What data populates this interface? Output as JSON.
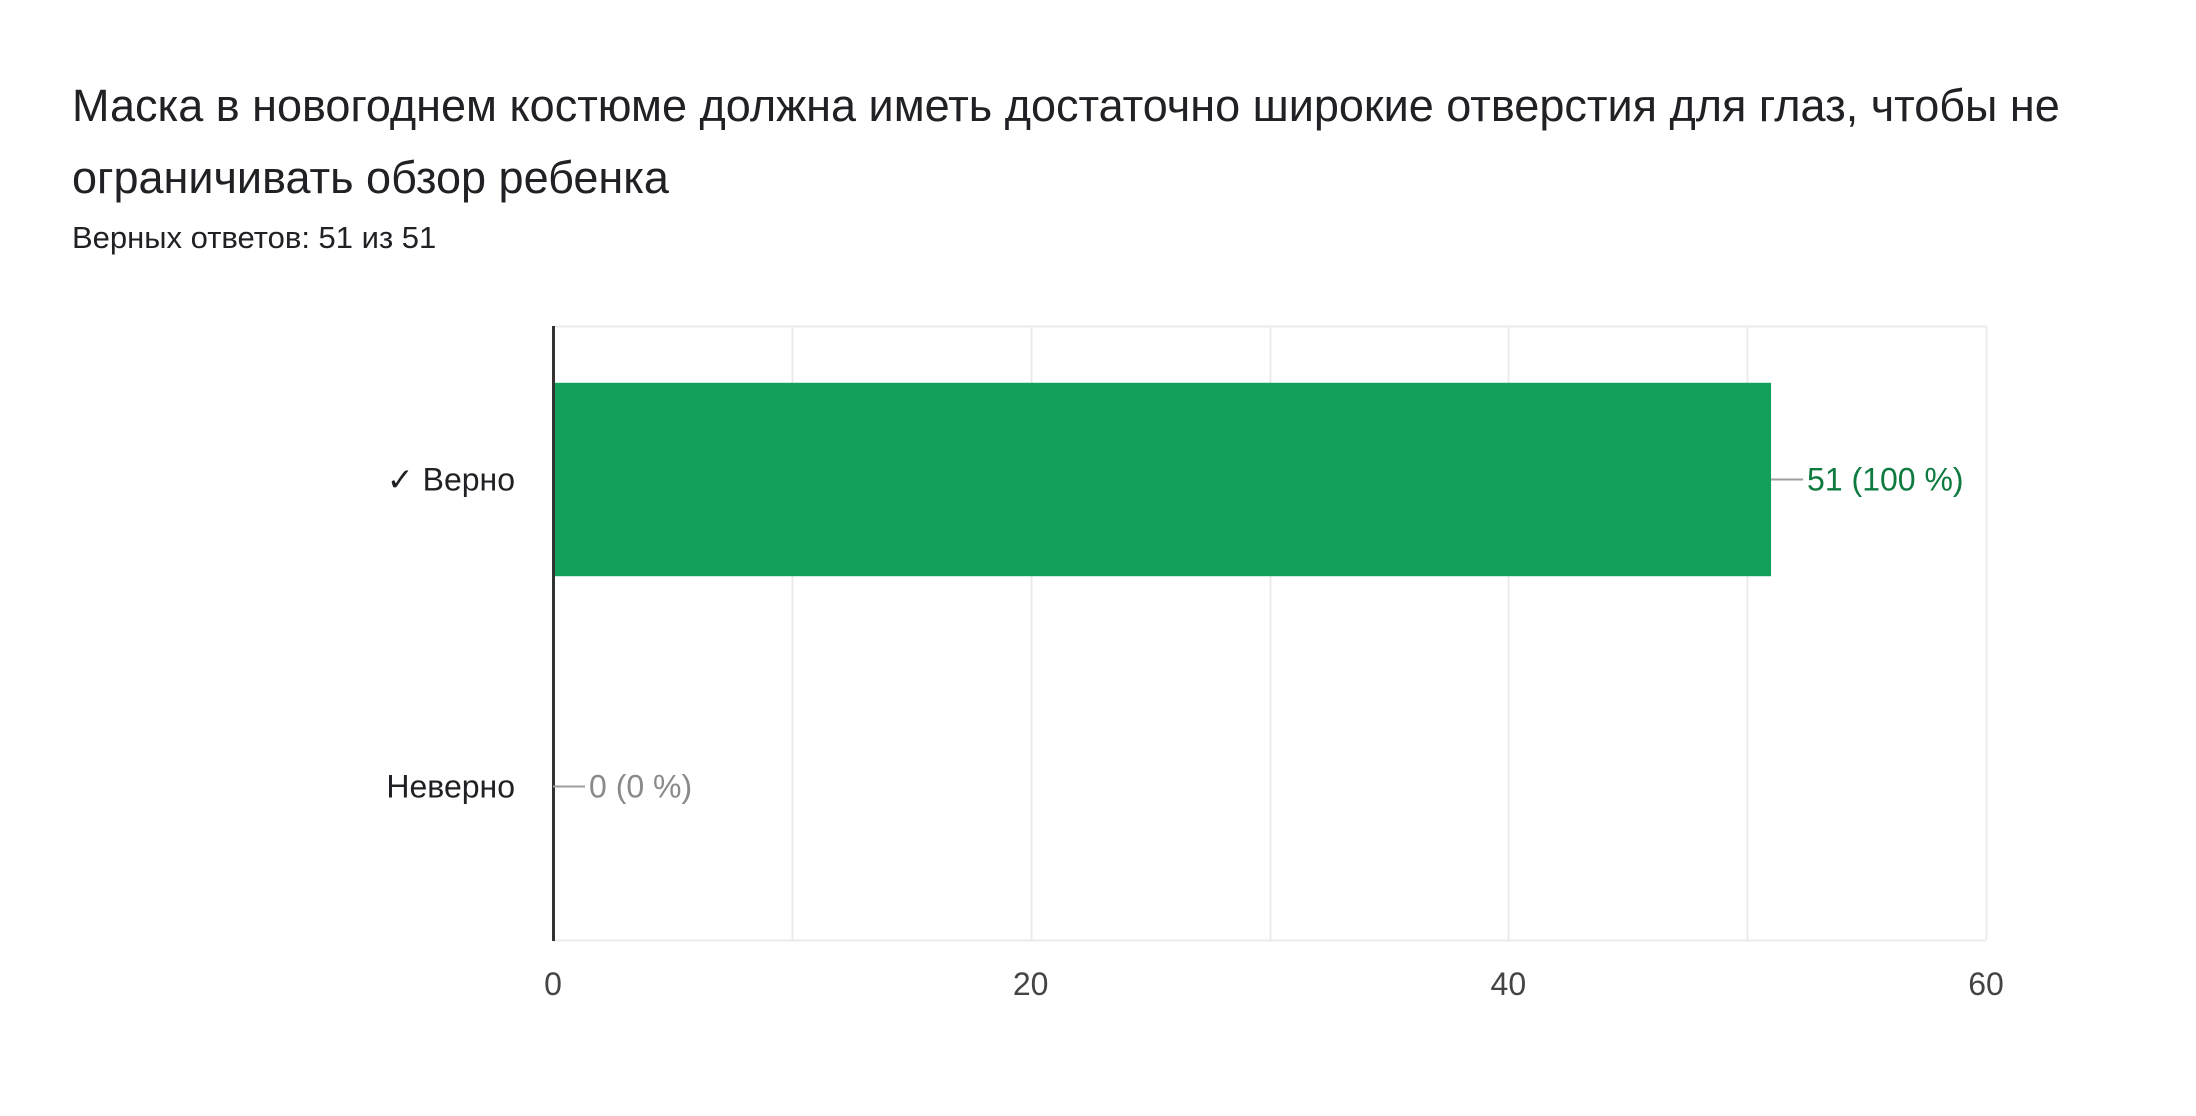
{
  "question": {
    "title": "Маска в новогоднем костюме должна иметь достаточно широкие отверстия для глаз, чтобы не ограничивать обзор ребенка",
    "summary": "Верных ответов: 51 из 51"
  },
  "chart_data": {
    "type": "bar",
    "orientation": "horizontal",
    "categories": [
      "✓ Верно",
      "Неверно"
    ],
    "values": [
      51,
      0
    ],
    "data_labels": [
      "51 (100 %)",
      "0 (0 %)"
    ],
    "xlim": [
      0,
      60
    ],
    "xticks": [
      0,
      20,
      40,
      60
    ],
    "grid": true,
    "legend": "none",
    "colors": {
      "bar": "#13a05b",
      "correct_label": "#0d7a3f",
      "zero_label": "#8a8a8a",
      "grid": "#ebebeb",
      "axis": "#333333"
    }
  }
}
